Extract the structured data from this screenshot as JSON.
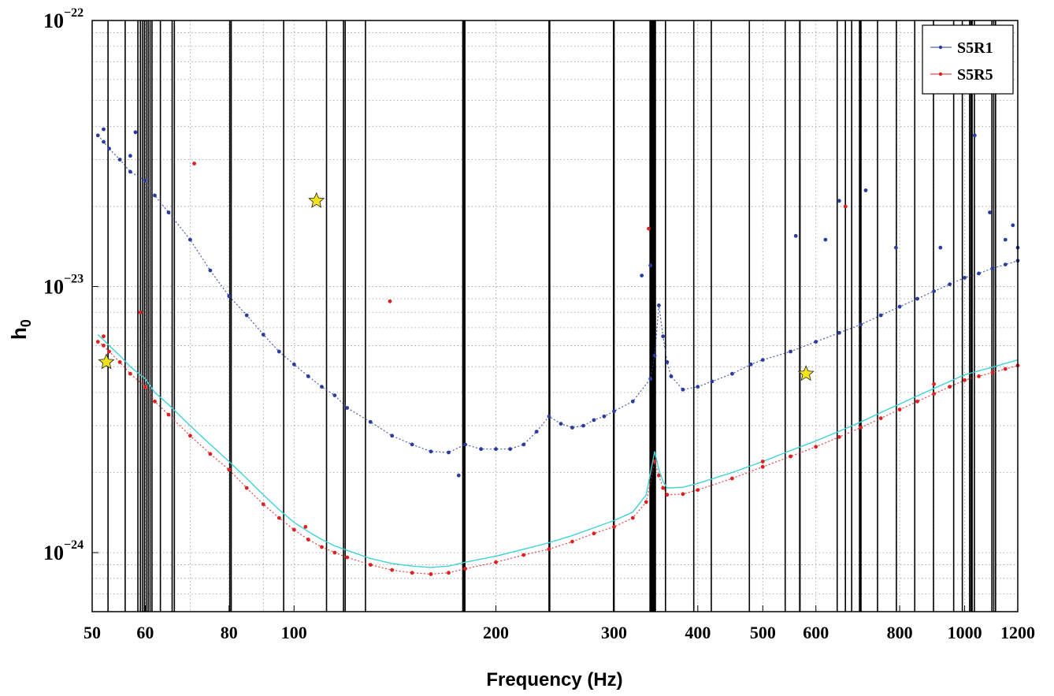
{
  "chart_data": {
    "type": "scatter",
    "title": "",
    "xlabel": "Frequency (Hz)",
    "ylabel": "h",
    "ylabel_subscript": "0",
    "x_scale": "log",
    "y_scale": "log",
    "xlim": [
      50,
      1200
    ],
    "ylim": [
      6e-25,
      1e-22
    ],
    "grid": true,
    "legend_position": "top-right",
    "x_ticks": [
      {
        "value": 50,
        "label": "50"
      },
      {
        "value": 60,
        "label": "60"
      },
      {
        "value": 80,
        "label": "80"
      },
      {
        "value": 100,
        "label": "100"
      },
      {
        "value": 200,
        "label": "200"
      },
      {
        "value": 300,
        "label": "300"
      },
      {
        "value": 400,
        "label": "400"
      },
      {
        "value": 500,
        "label": "500"
      },
      {
        "value": 600,
        "label": "600"
      },
      {
        "value": 800,
        "label": "800"
      },
      {
        "value": 1000,
        "label": "1000"
      },
      {
        "value": 1200,
        "label": "1200"
      }
    ],
    "y_ticks": [
      {
        "value": 1e-22,
        "base": "10",
        "exp": "−22"
      },
      {
        "value": 1e-23,
        "base": "10",
        "exp": "−23"
      },
      {
        "value": 1e-24,
        "base": "10",
        "exp": "−24"
      }
    ],
    "series": [
      {
        "name": "S5R1",
        "color": "#2a3d9e",
        "marker": "dot",
        "points": [
          [
            51,
            3.7e-23
          ],
          [
            52,
            3.5e-23
          ],
          [
            53,
            3.3e-23
          ],
          [
            55,
            3e-23
          ],
          [
            57,
            2.7e-23
          ],
          [
            60,
            2.5e-23
          ],
          [
            62,
            2.2e-23
          ],
          [
            65,
            1.9e-23
          ],
          [
            70,
            1.5e-23
          ],
          [
            75,
            1.15e-23
          ],
          [
            80,
            9.2e-24
          ],
          [
            85,
            7.8e-24
          ],
          [
            90,
            6.6e-24
          ],
          [
            95,
            5.7e-24
          ],
          [
            100,
            5.1e-24
          ],
          [
            105,
            4.6e-24
          ],
          [
            110,
            4.2e-24
          ],
          [
            115,
            3.9e-24
          ],
          [
            120,
            3.5e-24
          ],
          [
            130,
            3.1e-24
          ],
          [
            140,
            2.75e-24
          ],
          [
            150,
            2.55e-24
          ],
          [
            160,
            2.4e-24
          ],
          [
            170,
            2.38e-24
          ],
          [
            180,
            2.55e-24
          ],
          [
            190,
            2.45e-24
          ],
          [
            200,
            2.45e-24
          ],
          [
            210,
            2.45e-24
          ],
          [
            220,
            2.55e-24
          ],
          [
            230,
            2.85e-24
          ],
          [
            240,
            3.25e-24
          ],
          [
            250,
            3.05e-24
          ],
          [
            260,
            2.95e-24
          ],
          [
            270,
            3e-24
          ],
          [
            280,
            3.15e-24
          ],
          [
            290,
            3.25e-24
          ],
          [
            300,
            3.4e-24
          ],
          [
            320,
            3.7e-24
          ],
          [
            340,
            4.5e-24
          ],
          [
            345,
            5.5e-24
          ],
          [
            350,
            8.5e-24
          ],
          [
            355,
            6.5e-24
          ],
          [
            360,
            5.2e-24
          ],
          [
            365,
            4.6e-24
          ],
          [
            380,
            4.1e-24
          ],
          [
            400,
            4.2e-24
          ],
          [
            420,
            4.4e-24
          ],
          [
            450,
            4.7e-24
          ],
          [
            480,
            5.1e-24
          ],
          [
            500,
            5.3e-24
          ],
          [
            550,
            5.7e-24
          ],
          [
            600,
            6.2e-24
          ],
          [
            650,
            6.7e-24
          ],
          [
            700,
            7.2e-24
          ],
          [
            750,
            7.8e-24
          ],
          [
            800,
            8.4e-24
          ],
          [
            850,
            9e-24
          ],
          [
            900,
            9.6e-24
          ],
          [
            950,
            1.02e-23
          ],
          [
            1000,
            1.08e-23
          ],
          [
            1050,
            1.12e-23
          ],
          [
            1100,
            1.17e-23
          ],
          [
            1150,
            1.21e-23
          ],
          [
            1200,
            1.25e-23
          ]
        ]
      },
      {
        "name": "S5R5",
        "color": "#e02020",
        "marker": "dot",
        "points": [
          [
            51,
            6.2e-24
          ],
          [
            52,
            6e-24
          ],
          [
            53,
            5.7e-24
          ],
          [
            55,
            5.2e-24
          ],
          [
            57,
            4.7e-24
          ],
          [
            60,
            4.2e-24
          ],
          [
            62,
            3.7e-24
          ],
          [
            65,
            3.3e-24
          ],
          [
            70,
            2.75e-24
          ],
          [
            75,
            2.35e-24
          ],
          [
            80,
            2.05e-24
          ],
          [
            85,
            1.75e-24
          ],
          [
            90,
            1.52e-24
          ],
          [
            95,
            1.35e-24
          ],
          [
            100,
            1.22e-24
          ],
          [
            105,
            1.12e-24
          ],
          [
            110,
            1.05e-24
          ],
          [
            115,
            1e-24
          ],
          [
            120,
            9.6e-25
          ],
          [
            130,
            9e-25
          ],
          [
            140,
            8.6e-25
          ],
          [
            150,
            8.4e-25
          ],
          [
            160,
            8.3e-25
          ],
          [
            170,
            8.4e-25
          ],
          [
            180,
            8.7e-25
          ],
          [
            200,
            9.2e-25
          ],
          [
            220,
            9.8e-25
          ],
          [
            240,
            1.03e-24
          ],
          [
            260,
            1.1e-24
          ],
          [
            280,
            1.18e-24
          ],
          [
            300,
            1.25e-24
          ],
          [
            320,
            1.35e-24
          ],
          [
            335,
            1.55e-24
          ],
          [
            345,
            2.2e-24
          ],
          [
            350,
            1.95e-24
          ],
          [
            355,
            1.75e-24
          ],
          [
            360,
            1.65e-24
          ],
          [
            380,
            1.66e-24
          ],
          [
            400,
            1.72e-24
          ],
          [
            450,
            1.9e-24
          ],
          [
            500,
            2.1e-24
          ],
          [
            550,
            2.3e-24
          ],
          [
            600,
            2.5e-24
          ],
          [
            650,
            2.72e-24
          ],
          [
            700,
            2.95e-24
          ],
          [
            750,
            3.2e-24
          ],
          [
            800,
            3.45e-24
          ],
          [
            850,
            3.7e-24
          ],
          [
            900,
            3.95e-24
          ],
          [
            950,
            4.2e-24
          ],
          [
            1000,
            4.45e-24
          ],
          [
            1050,
            4.6e-24
          ],
          [
            1100,
            4.75e-24
          ],
          [
            1150,
            4.9e-24
          ],
          [
            1200,
            5.05e-24
          ]
        ]
      },
      {
        "name": "",
        "color": "#3fd2d8",
        "marker": "line",
        "points": [
          [
            51,
            6.6e-24
          ],
          [
            52,
            6.3e-24
          ],
          [
            53,
            6e-24
          ],
          [
            55,
            5.5e-24
          ],
          [
            57,
            5e-24
          ],
          [
            60,
            4.5e-24
          ],
          [
            62,
            4e-24
          ],
          [
            65,
            3.6e-24
          ],
          [
            70,
            3e-24
          ],
          [
            75,
            2.55e-24
          ],
          [
            80,
            2.2e-24
          ],
          [
            85,
            1.9e-24
          ],
          [
            90,
            1.65e-24
          ],
          [
            95,
            1.45e-24
          ],
          [
            100,
            1.3e-24
          ],
          [
            105,
            1.2e-24
          ],
          [
            110,
            1.12e-24
          ],
          [
            115,
            1.06e-24
          ],
          [
            120,
            1.02e-24
          ],
          [
            130,
            9.5e-25
          ],
          [
            140,
            9.1e-25
          ],
          [
            150,
            8.9e-25
          ],
          [
            160,
            8.8e-25
          ],
          [
            170,
            8.9e-25
          ],
          [
            180,
            9.2e-25
          ],
          [
            200,
            9.7e-25
          ],
          [
            220,
            1.03e-24
          ],
          [
            240,
            1.09e-24
          ],
          [
            260,
            1.16e-24
          ],
          [
            280,
            1.24e-24
          ],
          [
            300,
            1.32e-24
          ],
          [
            320,
            1.42e-24
          ],
          [
            335,
            1.65e-24
          ],
          [
            345,
            2.4e-24
          ],
          [
            350,
            2.05e-24
          ],
          [
            355,
            1.85e-24
          ],
          [
            360,
            1.75e-24
          ],
          [
            380,
            1.76e-24
          ],
          [
            400,
            1.82e-24
          ],
          [
            450,
            2e-24
          ],
          [
            500,
            2.2e-24
          ],
          [
            550,
            2.42e-24
          ],
          [
            600,
            2.63e-24
          ],
          [
            650,
            2.86e-24
          ],
          [
            700,
            3.1e-24
          ],
          [
            750,
            3.36e-24
          ],
          [
            800,
            3.62e-24
          ],
          [
            850,
            3.88e-24
          ],
          [
            900,
            4.14e-24
          ],
          [
            950,
            4.4e-24
          ],
          [
            1000,
            4.66e-24
          ],
          [
            1050,
            4.82e-24
          ],
          [
            1100,
            4.98e-24
          ],
          [
            1150,
            5.14e-24
          ],
          [
            1200,
            5.3e-24
          ]
        ]
      }
    ],
    "outlier_points": [
      {
        "series": "S5R1",
        "points": [
          [
            52,
            3.9e-23
          ],
          [
            58,
            3.8e-23
          ],
          [
            57,
            3.1e-23
          ],
          [
            176,
            1.95e-24
          ],
          [
            650,
            2.1e-23
          ],
          [
            712,
            2.3e-23
          ],
          [
            1035,
            3.7e-23
          ],
          [
            1090,
            1.9e-23
          ],
          [
            1180,
            1.7e-23
          ],
          [
            1150,
            1.5e-23
          ],
          [
            620,
            1.5e-23
          ],
          [
            560,
            1.55e-23
          ],
          [
            920,
            1.4e-23
          ],
          [
            790,
            1.4e-23
          ],
          [
            1200,
            1.4e-23
          ],
          [
            340,
            1.2e-23
          ],
          [
            330,
            1.1e-23
          ]
        ]
      },
      {
        "series": "S5R5",
        "points": [
          [
            71,
            2.9e-23
          ],
          [
            139,
            8.8e-24
          ],
          [
            338,
            1.65e-23
          ],
          [
            664,
            2e-23
          ],
          [
            59,
            8e-24
          ],
          [
            52,
            6.5e-24
          ],
          [
            104,
            1.25e-24
          ],
          [
            500,
            2.2e-24
          ],
          [
            900,
            4.3e-24
          ]
        ]
      }
    ],
    "highlight_stars": {
      "color": "#f4e21a",
      "points": [
        [
          52.5,
          5.2e-24
        ],
        [
          108,
          2.1e-23
        ],
        [
          580,
          4.7e-24
        ]
      ]
    },
    "vertical_lines": {
      "color": "#000000",
      "x": [
        52.8,
        56,
        58.5,
        59.0,
        59.4,
        59.8,
        60.2,
        60.6,
        61.0,
        61.4,
        63.2,
        65.8,
        66.3,
        80.2,
        80.6,
        96.5,
        111.8,
        118.5,
        119.2,
        127.8,
        178.5,
        179.2,
        179.8,
        240,
        240.6,
        299.5,
        300.1,
        339.5,
        340.2,
        341,
        341.8,
        342.6,
        343.4,
        344.2,
        345,
        345.8,
        358,
        394.5,
        419,
        477.5,
        540,
        567.5,
        568.2,
        645.5,
        664,
        678.5,
        697,
        698,
        699,
        700.5,
        741.5,
        791,
        842.5,
        898.5,
        963,
        992,
        1017,
        1022,
        1026,
        1034,
        1098,
        1105,
        1112
      ]
    },
    "legend": [
      {
        "label": "S5R1",
        "color": "#2a3d9e"
      },
      {
        "label": "S5R5",
        "color": "#e02020"
      }
    ]
  }
}
